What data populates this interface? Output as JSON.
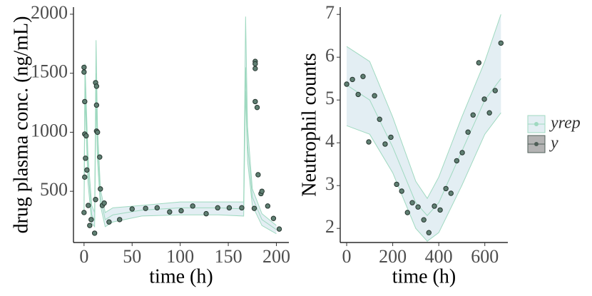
{
  "chart_data": [
    {
      "type": "line",
      "xlabel": "time (h)",
      "ylabel": "drug plasma conc. (ng/mL)",
      "xlim": [
        -11,
        213
      ],
      "xticks": [
        0,
        50,
        100,
        150,
        200
      ],
      "ylim": [
        66,
        2060
      ],
      "yticks": [
        500,
        1000,
        1500,
        2000
      ],
      "series": [
        {
          "type": "line",
          "color": "#9fd9c0",
          "fill": "#e3eef3",
          "x": [
            0,
            1,
            4,
            8,
            11,
            12.5,
            14,
            17,
            22,
            30,
            60,
            100,
            140,
            166,
            168,
            170,
            175,
            185,
            200
          ],
          "values": [
            350,
            1500,
            700,
            300,
            250,
            1500,
            900,
            450,
            260,
            300,
            340,
            360,
            360,
            350,
            1550,
            900,
            450,
            260,
            175
          ],
          "lower": [
            300,
            1320,
            580,
            230,
            200,
            1300,
            760,
            380,
            200,
            240,
            290,
            300,
            300,
            290,
            1350,
            760,
            380,
            210,
            140
          ],
          "upper": [
            420,
            1580,
            820,
            380,
            320,
            1780,
            1050,
            520,
            320,
            360,
            380,
            410,
            410,
            410,
            1980,
            1050,
            520,
            310,
            210
          ]
        },
        {
          "type": "scatter",
          "color": "#5f7f72",
          "x": [
            0,
            0,
            0,
            0.7,
            0.7,
            2.2,
            1.5,
            0.7,
            3,
            4.4,
            5.9,
            7.4,
            11,
            12,
            12,
            13,
            13,
            13,
            14,
            16.3,
            17,
            19,
            21,
            26,
            37,
            50,
            64,
            76,
            89,
            101,
            113,
            127,
            139,
            151,
            164,
            177,
            178,
            178,
            178,
            178,
            180,
            181,
            184,
            185,
            191,
            197,
            203
          ],
          "values": [
            320,
            1510,
            1550,
            1260,
            985,
            970,
            780,
            620,
            680,
            380,
            210,
            260,
            145,
            430,
            1420,
            1390,
            1230,
            1010,
            1000,
            790,
            520,
            380,
            400,
            240,
            260,
            350,
            355,
            360,
            325,
            335,
            375,
            310,
            360,
            360,
            360,
            355,
            1260,
            1600,
            1580,
            1540,
            1210,
            640,
            480,
            500,
            375,
            270,
            180
          ]
        }
      ]
    },
    {
      "type": "line",
      "xlabel": "time (h)",
      "ylabel": "Neutrophil counts",
      "xlim": [
        -28,
        700
      ],
      "xticks": [
        0,
        200,
        400,
        600
      ],
      "ylim": [
        1.67,
        7.17
      ],
      "yticks": [
        2,
        3,
        4,
        5,
        6,
        7
      ],
      "series": [
        {
          "type": "line",
          "color": "#9fd9c0",
          "fill": "#e3eef3",
          "x": [
            0,
            100,
            200,
            300,
            350,
            400,
            500,
            600,
            670
          ],
          "values": [
            5.35,
            5.0,
            3.9,
            2.6,
            2.3,
            2.6,
            3.8,
            5.0,
            5.5
          ],
          "lower": [
            4.4,
            4.2,
            3.3,
            2.0,
            1.7,
            1.9,
            3.0,
            4.2,
            4.7
          ],
          "upper": [
            6.25,
            5.9,
            4.6,
            3.1,
            2.7,
            3.2,
            4.6,
            5.9,
            7.0
          ]
        },
        {
          "type": "scatter",
          "color": "#5f7f72",
          "x": [
            0,
            25,
            50,
            71,
            96,
            121,
            143,
            167,
            192,
            217,
            239,
            264,
            285,
            310,
            335,
            357,
            381,
            406,
            431,
            453,
            478,
            502,
            527,
            549,
            574,
            598,
            620,
            645,
            670
          ],
          "values": [
            5.37,
            5.48,
            5.13,
            5.55,
            4.02,
            5.1,
            4.55,
            3.97,
            4.13,
            3.03,
            2.87,
            2.37,
            2.6,
            2.5,
            2.2,
            1.9,
            2.52,
            2.43,
            2.93,
            2.82,
            3.58,
            3.77,
            4.25,
            4.65,
            5.87,
            5.02,
            4.7,
            5.22,
            6.33
          ]
        }
      ]
    }
  ],
  "legend": {
    "position": "right",
    "entries": [
      {
        "name": "yrep",
        "color": "#9fd9c0",
        "fill": "#e3eef3"
      },
      {
        "name": "y",
        "color": "#4f5f58",
        "fill": "#b3b3b3"
      }
    ]
  }
}
